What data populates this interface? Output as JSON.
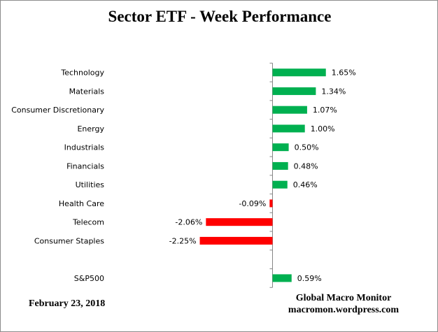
{
  "chart_data": {
    "type": "bar",
    "orientation": "horizontal",
    "title": "Sector ETF - Week Performance",
    "categories": [
      "Technology",
      "Materials",
      "Consumer Discretionary",
      "Energy",
      "Industrials",
      "Financials",
      "Utilities",
      "Health Care",
      "Telecom",
      "Consumer Staples",
      "",
      "S&P500"
    ],
    "values": [
      1.65,
      1.34,
      1.07,
      1.0,
      0.5,
      0.48,
      0.46,
      -0.09,
      -2.06,
      -2.25,
      null,
      0.59
    ],
    "data_labels": [
      "1.65%",
      "1.34%",
      "1.07%",
      "1.00%",
      "0.50%",
      "0.48%",
      "0.46%",
      "-0.09%",
      "-2.06%",
      "-2.25%",
      "",
      "0.59%"
    ],
    "unit": "%",
    "colors": {
      "positive": "#00b050",
      "negative": "#ff0000"
    },
    "grid": false,
    "legend": "none"
  },
  "footer": {
    "date": "February 23, 2018",
    "source_line1": "Global Macro Monitor",
    "source_line2": "macromon.wordpress.com"
  }
}
